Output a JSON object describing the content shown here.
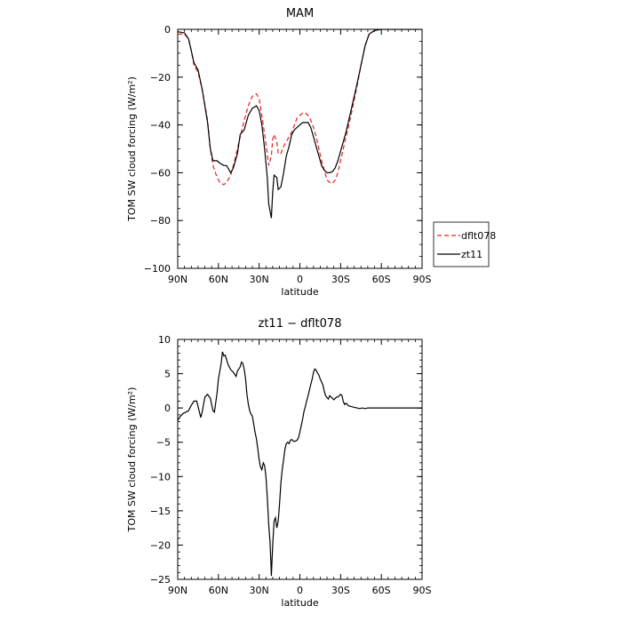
{
  "chart_data": [
    {
      "type": "line",
      "title": "MAM",
      "xlabel": "latitude",
      "ylabel": "TOM SW cloud forcing (W/m²)",
      "xlim": [
        90,
        -90
      ],
      "ylim": [
        -100,
        0
      ],
      "xticks": [
        {
          "value": 90,
          "label": "90N"
        },
        {
          "value": 60,
          "label": "60N"
        },
        {
          "value": 30,
          "label": "30N"
        },
        {
          "value": 0,
          "label": "0"
        },
        {
          "value": -30,
          "label": "30S"
        },
        {
          "value": -60,
          "label": "60S"
        },
        {
          "value": -90,
          "label": "90S"
        }
      ],
      "yticks": [
        {
          "value": 0,
          "label": "0"
        },
        {
          "value": -20,
          "label": "−20"
        },
        {
          "value": -40,
          "label": "−40"
        },
        {
          "value": -60,
          "label": "−60"
        },
        {
          "value": -80,
          "label": "−80"
        },
        {
          "value": -100,
          "label": "−100"
        }
      ],
      "legend_position": "right",
      "series": [
        {
          "name": "dflt078",
          "color": "#e8221e",
          "dash": true,
          "points": [
            [
              90,
              -2
            ],
            [
              85,
              -2
            ],
            [
              82,
              -4
            ],
            [
              80,
              -9
            ],
            [
              78,
              -15
            ],
            [
              75,
              -18
            ],
            [
              72,
              -25
            ],
            [
              68,
              -38
            ],
            [
              66,
              -50
            ],
            [
              64,
              -57
            ],
            [
              61,
              -62
            ],
            [
              59,
              -64
            ],
            [
              56,
              -65
            ],
            [
              54,
              -64
            ],
            [
              51,
              -61
            ],
            [
              49,
              -57
            ],
            [
              46,
              -50
            ],
            [
              44,
              -45
            ],
            [
              41,
              -38
            ],
            [
              38,
              -32
            ],
            [
              35,
              -28
            ],
            [
              32,
              -27
            ],
            [
              30,
              -29
            ],
            [
              28,
              -36
            ],
            [
              26,
              -44
            ],
            [
              24,
              -52
            ],
            [
              23,
              -57
            ],
            [
              21,
              -53
            ],
            [
              20,
              -46
            ],
            [
              19,
              -44
            ],
            [
              17,
              -47
            ],
            [
              16,
              -52
            ],
            [
              14,
              -52
            ],
            [
              12,
              -49
            ],
            [
              10,
              -47
            ],
            [
              8,
              -45
            ],
            [
              6,
              -43
            ],
            [
              4,
              -40
            ],
            [
              2,
              -37
            ],
            [
              0,
              -36
            ],
            [
              -2,
              -35
            ],
            [
              -4,
              -35
            ],
            [
              -6,
              -36
            ],
            [
              -8,
              -38
            ],
            [
              -10,
              -41
            ],
            [
              -12,
              -45
            ],
            [
              -14,
              -50
            ],
            [
              -16,
              -55
            ],
            [
              -18,
              -59
            ],
            [
              -20,
              -63
            ],
            [
              -22,
              -64
            ],
            [
              -24,
              -64.5
            ],
            [
              -26,
              -63
            ],
            [
              -28,
              -60
            ],
            [
              -30,
              -55
            ],
            [
              -34,
              -45
            ],
            [
              -38,
              -35
            ],
            [
              -42,
              -24
            ],
            [
              -45,
              -15
            ],
            [
              -48,
              -7
            ],
            [
              -51,
              -2
            ],
            [
              -55,
              -0.5
            ],
            [
              -60,
              0
            ],
            [
              -70,
              0
            ],
            [
              -90,
              0
            ]
          ]
        },
        {
          "name": "zt11",
          "color": "#000000",
          "dash": false,
          "points": [
            [
              90,
              -1
            ],
            [
              85,
              -1.5
            ],
            [
              82,
              -4
            ],
            [
              80,
              -9
            ],
            [
              78,
              -14
            ],
            [
              75,
              -17
            ],
            [
              72,
              -25
            ],
            [
              68,
              -39
            ],
            [
              66,
              -50
            ],
            [
              64,
              -55
            ],
            [
              61,
              -55
            ],
            [
              59,
              -56
            ],
            [
              56,
              -57
            ],
            [
              54,
              -57
            ],
            [
              51,
              -60
            ],
            [
              49,
              -58
            ],
            [
              46,
              -52
            ],
            [
              44,
              -44
            ],
            [
              41,
              -42
            ],
            [
              38,
              -36
            ],
            [
              35,
              -33
            ],
            [
              32,
              -32
            ],
            [
              30,
              -34
            ],
            [
              28,
              -40
            ],
            [
              26,
              -50
            ],
            [
              24,
              -62
            ],
            [
              23,
              -73
            ],
            [
              21,
              -79
            ],
            [
              20,
              -68
            ],
            [
              19,
              -61
            ],
            [
              17,
              -62
            ],
            [
              16,
              -67
            ],
            [
              14,
              -66
            ],
            [
              12,
              -60
            ],
            [
              10,
              -53
            ],
            [
              8,
              -49
            ],
            [
              6,
              -44
            ],
            [
              4,
              -42
            ],
            [
              2,
              -41
            ],
            [
              0,
              -40
            ],
            [
              -2,
              -39
            ],
            [
              -4,
              -39
            ],
            [
              -6,
              -39
            ],
            [
              -8,
              -41
            ],
            [
              -10,
              -45
            ],
            [
              -12,
              -49
            ],
            [
              -14,
              -53
            ],
            [
              -16,
              -57
            ],
            [
              -18,
              -59
            ],
            [
              -20,
              -60
            ],
            [
              -22,
              -60
            ],
            [
              -24,
              -59.5
            ],
            [
              -26,
              -58
            ],
            [
              -28,
              -55
            ],
            [
              -30,
              -51
            ],
            [
              -34,
              -43
            ],
            [
              -38,
              -33
            ],
            [
              -42,
              -23
            ],
            [
              -45,
              -15
            ],
            [
              -48,
              -7
            ],
            [
              -51,
              -2
            ],
            [
              -55,
              -0.5
            ],
            [
              -60,
              0
            ],
            [
              -70,
              0
            ],
            [
              -90,
              0
            ]
          ]
        }
      ]
    },
    {
      "type": "line",
      "title": "zt11 − dflt078",
      "xlabel": "latitude",
      "ylabel": "TOM SW cloud forcing (W/m²)",
      "xlim": [
        90,
        -90
      ],
      "ylim": [
        -25,
        10
      ],
      "xticks": [
        {
          "value": 90,
          "label": "90N"
        },
        {
          "value": 60,
          "label": "60N"
        },
        {
          "value": 30,
          "label": "30N"
        },
        {
          "value": 0,
          "label": "0"
        },
        {
          "value": -30,
          "label": "30S"
        },
        {
          "value": -60,
          "label": "60S"
        },
        {
          "value": -90,
          "label": "90S"
        }
      ],
      "yticks": [
        {
          "value": 10,
          "label": "10"
        },
        {
          "value": 5,
          "label": "5"
        },
        {
          "value": 0,
          "label": "0"
        },
        {
          "value": -5,
          "label": "−5"
        },
        {
          "value": -10,
          "label": "−10"
        },
        {
          "value": -15,
          "label": "−15"
        },
        {
          "value": -20,
          "label": "−20"
        },
        {
          "value": -25,
          "label": "−25"
        }
      ],
      "series": [
        {
          "name": "",
          "color": "#000000",
          "dash": false,
          "points": [
            [
              90,
              -1.8
            ],
            [
              88,
              -1.2
            ],
            [
              86,
              -0.8
            ],
            [
              84,
              -0.6
            ],
            [
              82,
              -0.4
            ],
            [
              80,
              0.4
            ],
            [
              78,
              1.0
            ],
            [
              76,
              1.0
            ],
            [
              74,
              -0.6
            ],
            [
              73,
              -1.4
            ],
            [
              72,
              -0.6
            ],
            [
              70,
              1.6
            ],
            [
              68,
              2.0
            ],
            [
              66,
              1.4
            ],
            [
              64,
              -0.4
            ],
            [
              63,
              -0.6
            ],
            [
              61,
              2.2
            ],
            [
              60,
              4.2
            ],
            [
              58,
              6.5
            ],
            [
              57,
              8.2
            ],
            [
              56,
              7.6
            ],
            [
              55,
              7.7
            ],
            [
              53,
              6.4
            ],
            [
              51,
              5.6
            ],
            [
              49,
              5.2
            ],
            [
              47,
              4.6
            ],
            [
              46,
              5.4
            ],
            [
              44,
              6.0
            ],
            [
              43,
              6.7
            ],
            [
              42,
              6.5
            ],
            [
              41,
              5.6
            ],
            [
              40,
              4.2
            ],
            [
              39,
              2.0
            ],
            [
              38,
              0.6
            ],
            [
              37,
              -0.4
            ],
            [
              36,
              -0.9
            ],
            [
              35,
              -1.2
            ],
            [
              34,
              -2.4
            ],
            [
              33,
              -3.6
            ],
            [
              32,
              -4.5
            ],
            [
              31,
              -5.9
            ],
            [
              30,
              -7.6
            ],
            [
              29,
              -8.6
            ],
            [
              28,
              -9.0
            ],
            [
              27,
              -8.0
            ],
            [
              26,
              -8.4
            ],
            [
              25,
              -10.0
            ],
            [
              24,
              -13.0
            ],
            [
              23,
              -17.0
            ],
            [
              22,
              -19.6
            ],
            [
              21.5,
              -22.0
            ],
            [
              21,
              -24.5
            ],
            [
              20,
              -20.0
            ],
            [
              19,
              -16.5
            ],
            [
              18,
              -16.0
            ],
            [
              17,
              -17.5
            ],
            [
              16,
              -16.5
            ],
            [
              15,
              -14.0
            ],
            [
              14,
              -11.0
            ],
            [
              13,
              -9.0
            ],
            [
              12,
              -7.5
            ],
            [
              11,
              -6.0
            ],
            [
              10,
              -5.2
            ],
            [
              9,
              -5.0
            ],
            [
              8,
              -5.2
            ],
            [
              7,
              -4.7
            ],
            [
              6,
              -4.6
            ],
            [
              5,
              -4.8
            ],
            [
              4,
              -4.9
            ],
            [
              3,
              -4.8
            ],
            [
              2,
              -4.7
            ],
            [
              1,
              -4.3
            ],
            [
              0,
              -3.5
            ],
            [
              -1,
              -2.6
            ],
            [
              -2,
              -1.6
            ],
            [
              -3,
              -0.5
            ],
            [
              -4,
              0.2
            ],
            [
              -5,
              1.0
            ],
            [
              -6,
              1.8
            ],
            [
              -7,
              2.6
            ],
            [
              -8,
              3.4
            ],
            [
              -9,
              4.2
            ],
            [
              -10,
              5.2
            ],
            [
              -11,
              5.7
            ],
            [
              -12,
              5.5
            ],
            [
              -13,
              5.1
            ],
            [
              -14,
              4.8
            ],
            [
              -15,
              4.2
            ],
            [
              -16,
              3.8
            ],
            [
              -17,
              3.3
            ],
            [
              -18,
              2.4
            ],
            [
              -19,
              1.8
            ],
            [
              -20,
              1.5
            ],
            [
              -21,
              1.3
            ],
            [
              -22,
              1.8
            ],
            [
              -23,
              1.6
            ],
            [
              -24,
              1.4
            ],
            [
              -25,
              1.2
            ],
            [
              -26,
              1.4
            ],
            [
              -27,
              1.6
            ],
            [
              -28,
              1.6
            ],
            [
              -29,
              1.8
            ],
            [
              -30,
              2.0
            ],
            [
              -31,
              1.8
            ],
            [
              -32,
              0.9
            ],
            [
              -33,
              0.5
            ],
            [
              -34,
              0.7
            ],
            [
              -35,
              0.5
            ],
            [
              -36,
              0.3
            ],
            [
              -38,
              0.2
            ],
            [
              -40,
              0.1
            ],
            [
              -42,
              0.0
            ],
            [
              -44,
              -0.1
            ],
            [
              -46,
              0.0
            ],
            [
              -48,
              -0.1
            ],
            [
              -50,
              0.0
            ],
            [
              -52,
              0.0
            ],
            [
              -55,
              0.0
            ],
            [
              -60,
              0.0
            ],
            [
              -70,
              0.0
            ],
            [
              -80,
              0.0
            ],
            [
              -90,
              0.0
            ]
          ]
        }
      ]
    }
  ]
}
